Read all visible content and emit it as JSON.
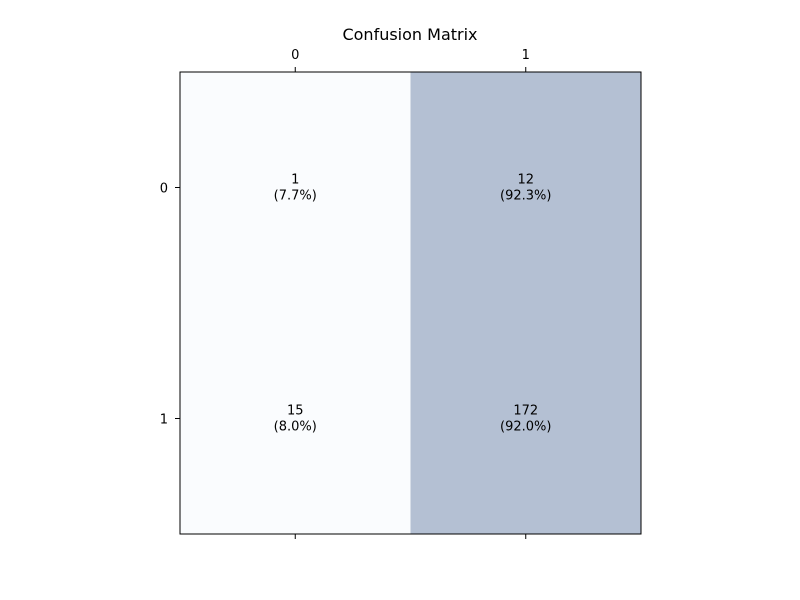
{
  "chart_data": {
    "type": "heatmap",
    "title": "Confusion Matrix",
    "xlabel": "",
    "ylabel": "",
    "x_categories": [
      "0",
      "1"
    ],
    "y_categories": [
      "0",
      "1"
    ],
    "values": [
      [
        1,
        12
      ],
      [
        15,
        172
      ]
    ],
    "cell_labels": [
      [
        {
          "count": "1",
          "percent": "(7.7%)"
        },
        {
          "count": "12",
          "percent": "(92.3%)"
        }
      ],
      [
        {
          "count": "15",
          "percent": "(8.0%)"
        },
        {
          "count": "172",
          "percent": "(92.0%)"
        }
      ]
    ],
    "row_normalized": [
      [
        0.077,
        0.923
      ],
      [
        0.08,
        0.92
      ]
    ],
    "colors": {
      "low": "#fafcfe",
      "high": "#b4c0d3",
      "border": "#000000",
      "text": "#000000"
    },
    "x_axis_ticks_position": "top-and-bottom",
    "grid": false,
    "legend": "none"
  }
}
